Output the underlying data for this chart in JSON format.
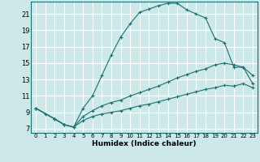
{
  "xlabel": "Humidex (Indice chaleur)",
  "bg_color": "#cde8e8",
  "grid_color": "#ffffff",
  "line_color": "#1a7070",
  "xlim": [
    -0.5,
    23.5
  ],
  "ylim": [
    6.5,
    22.5
  ],
  "yticks": [
    7,
    9,
    11,
    13,
    15,
    17,
    19,
    21
  ],
  "xticks": [
    0,
    1,
    2,
    3,
    4,
    5,
    6,
    7,
    8,
    9,
    10,
    11,
    12,
    13,
    14,
    15,
    16,
    17,
    18,
    19,
    20,
    21,
    22,
    23
  ],
  "curve1_x": [
    0,
    1,
    2,
    3,
    4,
    5,
    6,
    7,
    8,
    9,
    10,
    11,
    12,
    13,
    14,
    15,
    16,
    17,
    18,
    19,
    20,
    21,
    22,
    23
  ],
  "curve1_y": [
    9.5,
    8.8,
    8.2,
    7.5,
    7.2,
    9.5,
    11.0,
    13.5,
    16.0,
    18.2,
    19.8,
    21.2,
    21.6,
    22.0,
    22.3,
    22.3,
    21.5,
    21.0,
    20.5,
    18.0,
    17.5,
    14.5,
    14.5,
    12.5
  ],
  "curve2_x": [
    0,
    2,
    3,
    4,
    5,
    6,
    7,
    8,
    9,
    10,
    11,
    12,
    13,
    14,
    15,
    16,
    17,
    18,
    19,
    20,
    21,
    22,
    23
  ],
  "curve2_y": [
    9.5,
    8.2,
    7.5,
    7.2,
    8.5,
    9.2,
    9.8,
    10.2,
    10.5,
    11.0,
    11.4,
    11.8,
    12.2,
    12.7,
    13.2,
    13.6,
    14.0,
    14.3,
    14.8,
    15.0,
    14.8,
    14.5,
    13.5
  ],
  "curve3_x": [
    0,
    2,
    3,
    4,
    5,
    6,
    7,
    8,
    9,
    10,
    11,
    12,
    13,
    14,
    15,
    16,
    17,
    18,
    19,
    20,
    21,
    22,
    23
  ],
  "curve3_y": [
    9.5,
    8.2,
    7.5,
    7.2,
    8.0,
    8.5,
    8.8,
    9.0,
    9.2,
    9.5,
    9.8,
    10.0,
    10.3,
    10.6,
    10.9,
    11.2,
    11.5,
    11.8,
    12.0,
    12.3,
    12.2,
    12.5,
    12.0
  ]
}
